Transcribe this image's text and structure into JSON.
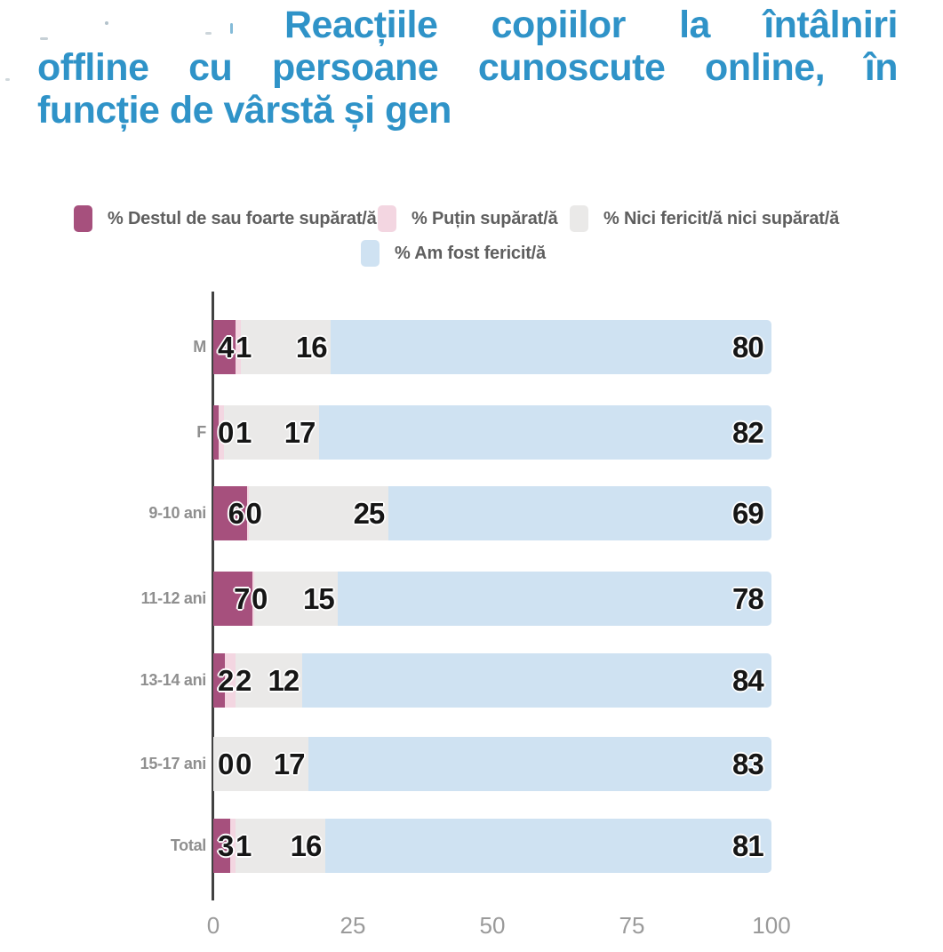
{
  "title": {
    "lines": [
      "Reacțiile copiilor la întâlniri",
      "offline cu persoane cunoscute online, în",
      "funcție de vârstă și gen"
    ],
    "color": "#2f93c8"
  },
  "legend": {
    "items": [
      {
        "label": "% Destul de sau foarte supărat/ă",
        "color": "#a6507d"
      },
      {
        "label": "% Puțin supărat/ă",
        "color": "#f3d6e1"
      },
      {
        "label": "% Nici fericit/ă nici supărat/ă",
        "color": "#eae9e8"
      },
      {
        "label": "% Am fost fericit/ă",
        "color": "#cfe2f2"
      }
    ]
  },
  "chart_data": {
    "type": "bar",
    "stacked": true,
    "orientation": "horizontal",
    "title": "Reacțiile copiilor la întâlniri offline cu persoane cunoscute online, în funcție de vârstă și gen",
    "categories": [
      "M",
      "F",
      "9-10 ani",
      "11-12 ani",
      "13-14 ani",
      "15-17 ani",
      "Total"
    ],
    "series": [
      {
        "name": "% Destul de sau foarte supărat/ă",
        "color": "#a6507d",
        "values": [
          4,
          0,
          6,
          7,
          2,
          0,
          3
        ]
      },
      {
        "name": "% Puțin supărat/ă",
        "color": "#f3d6e1",
        "values": [
          1,
          1,
          0,
          0,
          2,
          0,
          1
        ]
      },
      {
        "name": "% Nici fericit/ă nici supărat/ă",
        "color": "#eae9e8",
        "values": [
          16,
          17,
          25,
          15,
          12,
          17,
          16
        ]
      },
      {
        "name": "% Am fost fericit/ă",
        "color": "#cfe2f2",
        "values": [
          80,
          82,
          69,
          78,
          84,
          83,
          81
        ]
      }
    ],
    "x_ticks": [
      "0",
      "25",
      "50",
      "75",
      "100"
    ],
    "x_tick_values": [
      0,
      25,
      50,
      75,
      100
    ],
    "xlim": [
      0,
      100
    ],
    "grid": false,
    "legend_position": "top",
    "value_labels_visible": true,
    "render_hints": {
      "sliver_overrides": [
        {
          "row": 1,
          "series": 0,
          "width": 0.9
        },
        {
          "row": 2,
          "series": 1,
          "width": 0.3
        },
        {
          "row": 3,
          "series": 1,
          "width": 0.3
        }
      ]
    }
  }
}
